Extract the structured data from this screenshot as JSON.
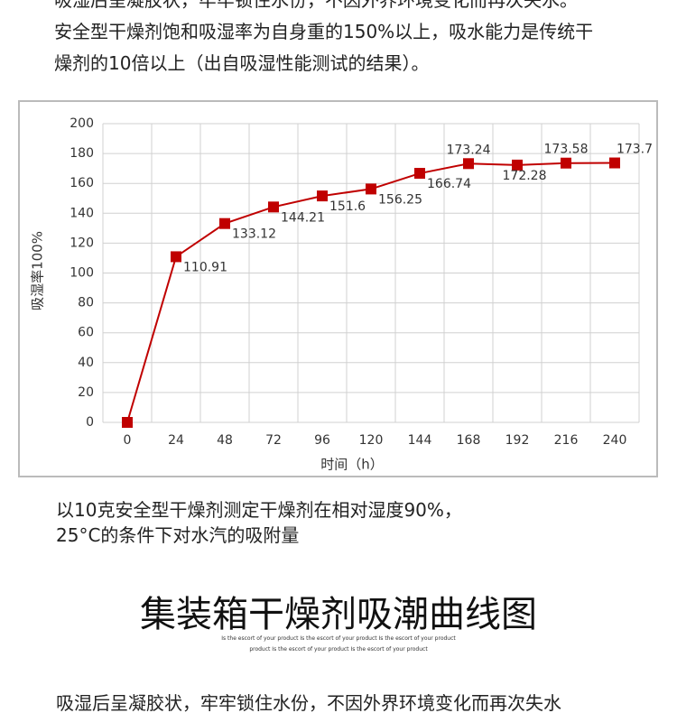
{
  "intro": {
    "lines": [
      "吸湿后呈凝胶状，牢牢锁住水份，不因外界环境变化而再次失水。",
      "安全型干燥剂饱和吸湿率为自身重的150%以上，吸水能力是传统干",
      "燥剂的10倍以上（出自吸湿性能测试的结果）。"
    ]
  },
  "chart_data": {
    "type": "line",
    "xlabel": "时间（h）",
    "ylabel": "吸湿率100%",
    "categories": [
      "0",
      "24",
      "48",
      "72",
      "96",
      "120",
      "144",
      "168",
      "192",
      "216",
      "240"
    ],
    "values": [
      0,
      110.91,
      133.12,
      144.21,
      151.6,
      156.25,
      166.74,
      173.24,
      172.28,
      173.58,
      173.7
    ],
    "color": "#c00000",
    "ylim": [
      0,
      200
    ],
    "yticks": [
      0,
      20,
      40,
      60,
      80,
      100,
      120,
      140,
      160,
      180,
      200
    ],
    "grid": true
  },
  "caption": {
    "lines": [
      "以10克安全型干燥剂测定干燥剂在相对湿度90%，",
      "25°C的条件下对水汽的吸附量"
    ]
  },
  "heading": "集装箱干燥剂吸潮曲线图",
  "tagline": [
    "Is the escort of your product Is the escort of your product Is the escort of your product",
    "product Is the escort of your product Is the escort of your product"
  ],
  "footer_text": "吸湿后呈凝胶状，牢牢锁住水份，不因外界环境变化而再次失水"
}
